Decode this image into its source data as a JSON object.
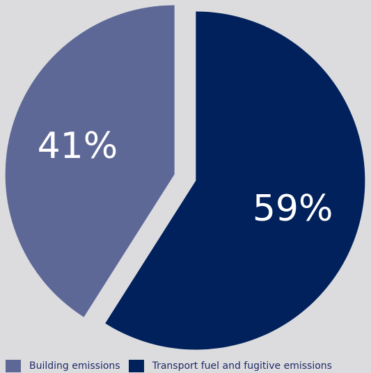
{
  "chart_data": {
    "type": "pie",
    "title": "",
    "slices": [
      {
        "label": "Transport fuel and fugitive emissions",
        "value": 59,
        "display": "59%",
        "color": "#01215c"
      },
      {
        "label": "Building emissions",
        "value": 41,
        "display": "41%",
        "color": "#5e6897"
      }
    ],
    "legend_position": "bottom",
    "background": "#dcdcdf"
  },
  "legend": {
    "items": [
      {
        "label": "Building emissions",
        "color": "#5e6897"
      },
      {
        "label": "Transport fuel and fugitive emissions",
        "color": "#01215c"
      }
    ]
  }
}
